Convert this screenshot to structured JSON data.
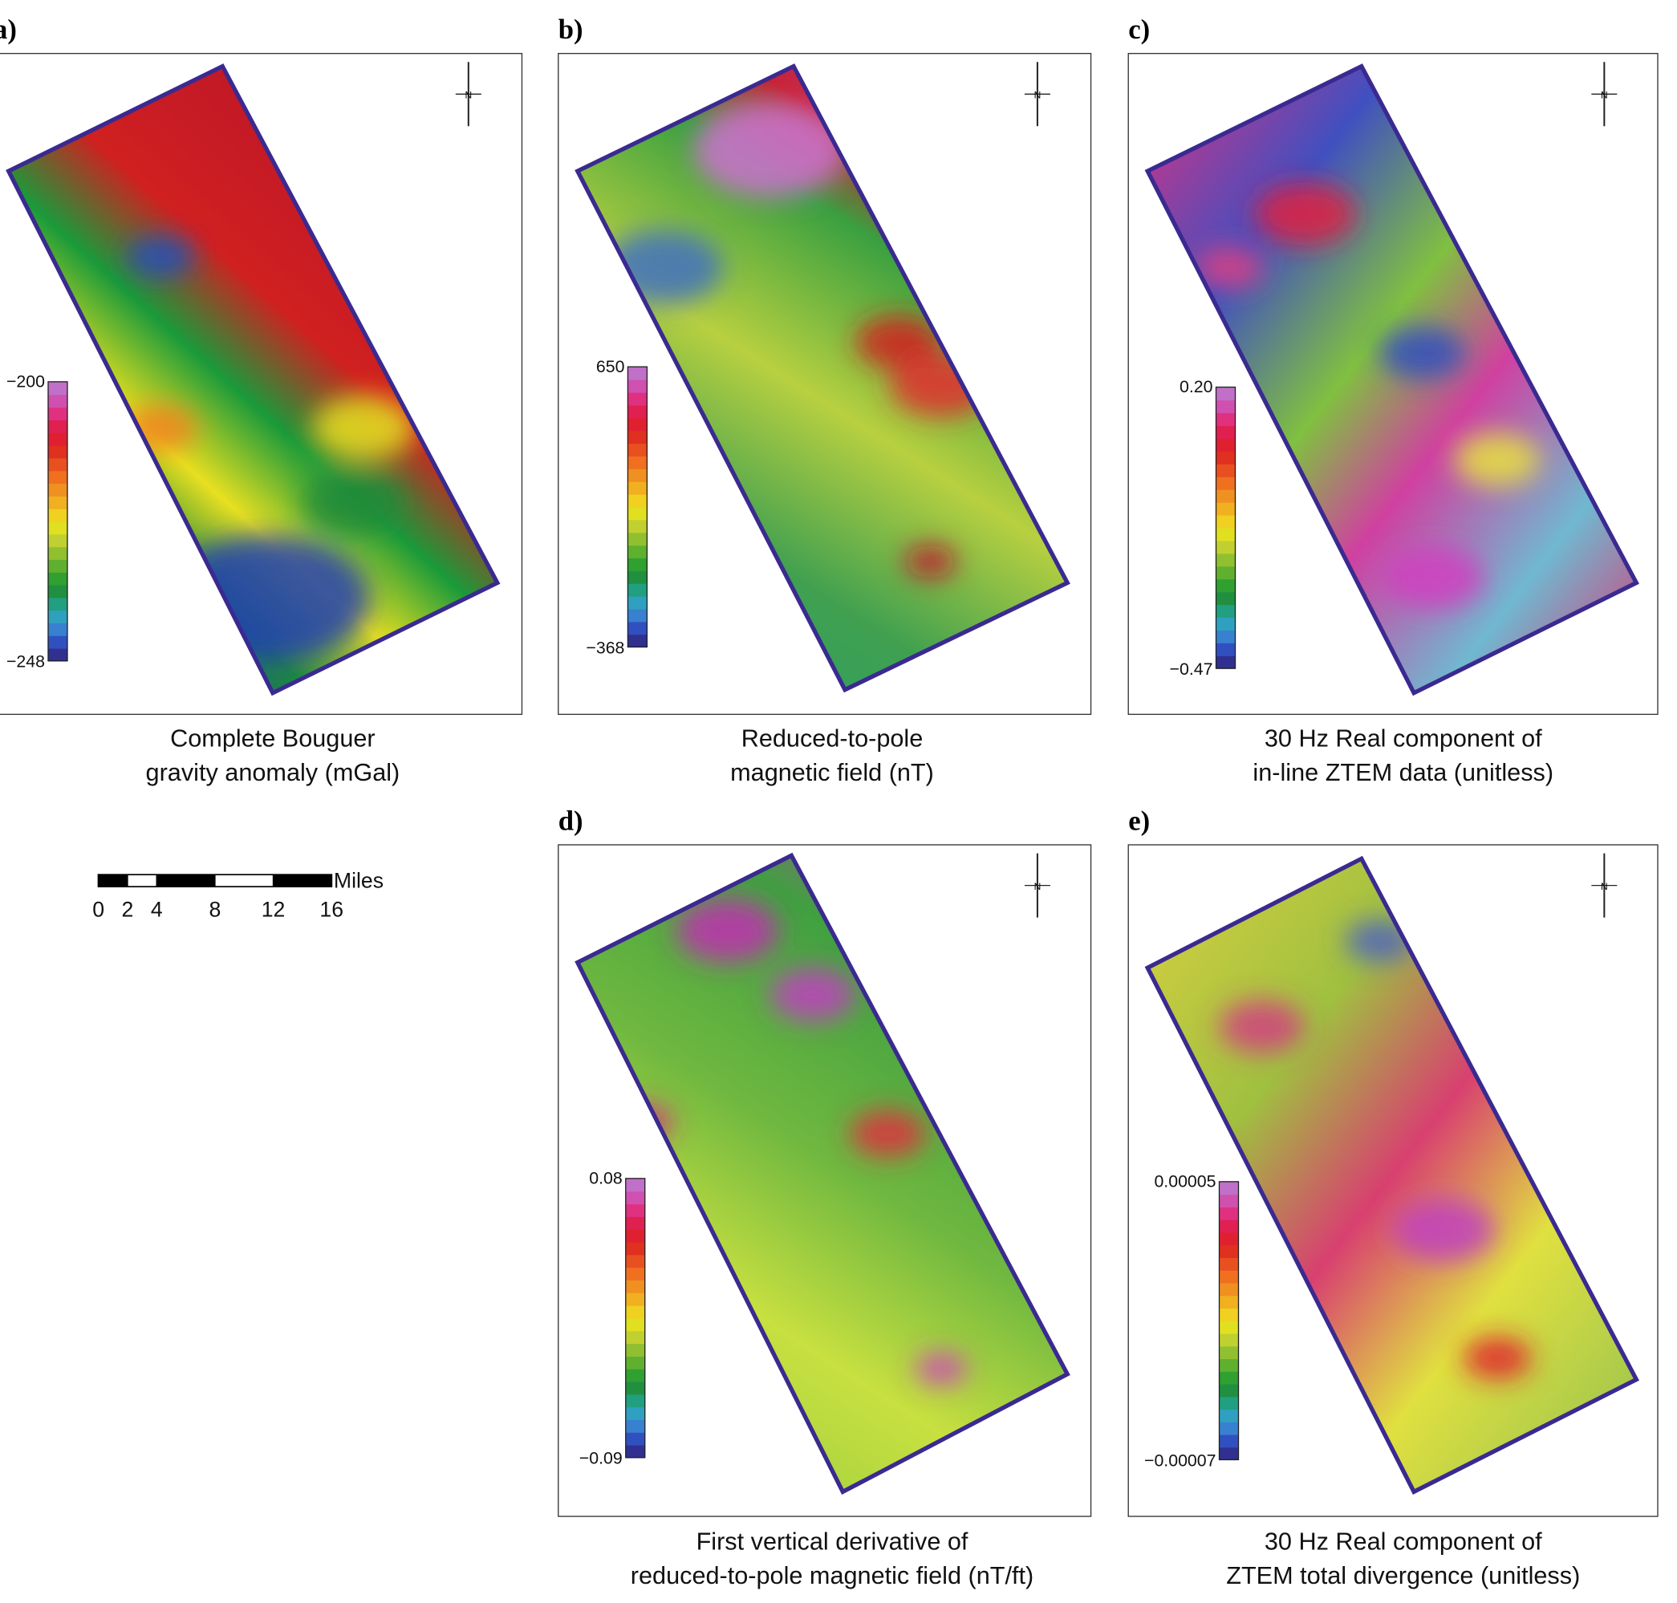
{
  "panels": [
    {
      "label": "a)",
      "caption": [
        "Complete Bouguer",
        "gravity anomaly (mGal)"
      ],
      "colorbar": {
        "max": "−200",
        "min": "−248"
      }
    },
    {
      "label": "b)",
      "caption": [
        "Reduced-to-pole",
        "magnetic field (nT)"
      ],
      "colorbar": {
        "max": "650",
        "min": "−368"
      }
    },
    {
      "label": "c)",
      "caption": [
        "30 Hz Real component of",
        "in-line ZTEM data (unitless)"
      ],
      "colorbar": {
        "max": "0.20",
        "min": "−0.47"
      }
    },
    {
      "label": "d)",
      "caption": [
        "First vertical derivative of",
        "reduced-to-pole magnetic field (nT/ft)"
      ],
      "colorbar": {
        "max": "0.08",
        "min": "−0.09"
      }
    },
    {
      "label": "e)",
      "caption": [
        "30 Hz Real  component of",
        "ZTEM  total divergence (unitless)"
      ],
      "colorbar": {
        "max": "0.00005",
        "min": "−0.00007"
      }
    }
  ],
  "north_label": "N",
  "scale_bar": {
    "unit": "Miles",
    "ticks": [
      0,
      2,
      4,
      8,
      12,
      16
    ]
  }
}
